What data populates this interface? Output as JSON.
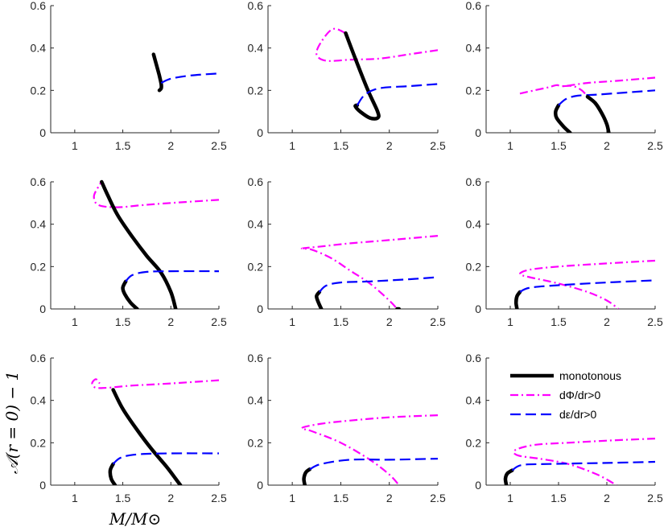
{
  "figure": {
    "ylabel": "𝒜(r = 0) − 1",
    "xlabel": "M/M⊙"
  },
  "chart_data": {
    "type": "line",
    "layout": "3x3 grid of panels",
    "xlim": [
      0.75,
      2.5
    ],
    "ylim": [
      0,
      0.6
    ],
    "xticks": [
      1,
      1.5,
      2,
      2.5
    ],
    "yticks": [
      0,
      0.2,
      0.4,
      0.6
    ],
    "xtick_labels": [
      "1",
      "1.5",
      "2",
      "2.5"
    ],
    "ytick_labels": [
      "0",
      "0.2",
      "0.4",
      "0.6"
    ],
    "legend": {
      "placement": "bottom-right panel, top-right",
      "entries": [
        {
          "key": "mono",
          "label": "monotonous"
        },
        {
          "key": "phi",
          "label": "dΦ/dr>0"
        },
        {
          "key": "eps",
          "label": "dε/dr>0"
        }
      ]
    },
    "styles": {
      "mono": {
        "color": "#000000",
        "dash": "solid"
      },
      "phi": {
        "color": "#ff00ff",
        "dash": "dashdot"
      },
      "eps": {
        "color": "#0000ff",
        "dash": "dashed"
      }
    },
    "panels": [
      {
        "series": [
          {
            "style": "mono",
            "x": [
              1.82,
              1.85,
              1.88,
              1.9,
              1.9,
              1.88
            ],
            "y": [
              0.37,
              0.32,
              0.27,
              0.23,
              0.21,
              0.2
            ]
          },
          {
            "style": "eps",
            "x": [
              1.9,
              2.0,
              2.2,
              2.5
            ],
            "y": [
              0.235,
              0.255,
              0.27,
              0.28
            ]
          }
        ]
      },
      {
        "series": [
          {
            "style": "phi",
            "x": [
              2.5,
              2.2,
              1.9,
              1.6,
              1.35,
              1.25,
              1.3,
              1.42,
              1.55
            ],
            "y": [
              0.39,
              0.37,
              0.35,
              0.345,
              0.34,
              0.37,
              0.43,
              0.49,
              0.47
            ]
          },
          {
            "style": "mono",
            "x": [
              1.55,
              1.65,
              1.78,
              1.88,
              1.88,
              1.8,
              1.7,
              1.65,
              1.67
            ],
            "y": [
              0.47,
              0.35,
              0.2,
              0.1,
              0.07,
              0.07,
              0.1,
              0.125,
              0.13
            ]
          },
          {
            "style": "eps",
            "x": [
              1.67,
              1.75,
              1.9,
              2.2,
              2.5
            ],
            "y": [
              0.13,
              0.18,
              0.21,
              0.22,
              0.23
            ]
          }
        ]
      },
      {
        "series": [
          {
            "style": "phi",
            "x": [
              1.1,
              1.25,
              1.4,
              1.48,
              1.55,
              1.8,
              2.1,
              2.5
            ],
            "y": [
              0.185,
              0.2,
              0.215,
              0.225,
              0.22,
              0.235,
              0.245,
              0.26
            ]
          },
          {
            "style": "mono",
            "x": [
              1.62,
              1.55,
              1.48,
              1.47,
              1.5
            ],
            "y": [
              0.0,
              0.03,
              0.07,
              0.1,
              0.13
            ]
          },
          {
            "style": "eps",
            "x": [
              1.5,
              1.58,
              1.7,
              1.9,
              2.2,
              2.5
            ],
            "y": [
              0.13,
              0.16,
              0.175,
              0.18,
              0.19,
              0.2
            ]
          },
          {
            "style": "phi",
            "x": [
              1.55,
              1.65,
              1.74,
              1.8
            ],
            "y": [
              0.22,
              0.22,
              0.2,
              0.17
            ]
          },
          {
            "style": "mono",
            "x": [
              1.8,
              1.88,
              1.95,
              2.0,
              2.02
            ],
            "y": [
              0.17,
              0.14,
              0.09,
              0.04,
              0.0
            ]
          }
        ]
      },
      {
        "series": [
          {
            "style": "phi",
            "x": [
              2.5,
              2.0,
              1.7,
              1.45,
              1.25,
              1.2,
              1.25,
              1.28
            ],
            "y": [
              0.515,
              0.5,
              0.49,
              0.48,
              0.49,
              0.53,
              0.58,
              0.6
            ]
          },
          {
            "style": "mono",
            "x": [
              1.28,
              1.35,
              1.45,
              1.6,
              1.75,
              1.9,
              2.0,
              2.05
            ],
            "y": [
              0.6,
              0.53,
              0.44,
              0.34,
              0.25,
              0.17,
              0.08,
              0.0
            ]
          },
          {
            "style": "mono",
            "x": [
              1.65,
              1.58,
              1.52,
              1.5,
              1.53
            ],
            "y": [
              0.0,
              0.03,
              0.07,
              0.1,
              0.13
            ]
          },
          {
            "style": "eps",
            "x": [
              1.53,
              1.6,
              1.75,
              2.0,
              2.5
            ],
            "y": [
              0.13,
              0.16,
              0.175,
              0.178,
              0.178
            ]
          }
        ]
      },
      {
        "series": [
          {
            "style": "phi",
            "x": [
              2.5,
              2.0,
              1.6,
              1.3,
              1.1,
              1.2,
              1.4,
              1.6,
              1.8,
              2.0,
              2.08
            ],
            "y": [
              0.345,
              0.325,
              0.31,
              0.295,
              0.285,
              0.28,
              0.24,
              0.18,
              0.12,
              0.04,
              0.0
            ]
          },
          {
            "style": "mono",
            "x": [
              2.08,
              2.1
            ],
            "y": [
              0.0,
              0.0
            ]
          },
          {
            "style": "mono",
            "x": [
              1.3,
              1.27,
              1.25,
              1.28
            ],
            "y": [
              0.0,
              0.03,
              0.06,
              0.08
            ]
          },
          {
            "style": "eps",
            "x": [
              1.28,
              1.35,
              1.5,
              1.8,
              2.2,
              2.5
            ],
            "y": [
              0.08,
              0.11,
              0.125,
              0.13,
              0.14,
              0.15
            ]
          }
        ]
      },
      {
        "series": [
          {
            "style": "phi",
            "x": [
              2.5,
              2.0,
              1.5,
              1.2,
              1.1,
              1.2,
              1.5,
              1.8,
              2.0,
              2.12
            ],
            "y": [
              0.228,
              0.215,
              0.2,
              0.185,
              0.165,
              0.15,
              0.12,
              0.08,
              0.04,
              0.0
            ]
          },
          {
            "style": "mono",
            "x": [
              1.07,
              1.06,
              1.07,
              1.1
            ],
            "y": [
              0.0,
              0.03,
              0.06,
              0.08
            ]
          },
          {
            "style": "eps",
            "x": [
              1.1,
              1.2,
              1.5,
              2.0,
              2.5
            ],
            "y": [
              0.08,
              0.1,
              0.112,
              0.125,
              0.135
            ]
          }
        ]
      },
      {
        "series": [
          {
            "style": "phi",
            "x": [
              2.5,
              2.0,
              1.6,
              1.35,
              1.22,
              1.18,
              1.22,
              1.26
            ],
            "y": [
              0.495,
              0.48,
              0.47,
              0.46,
              0.46,
              0.48,
              0.5,
              0.48
            ]
          },
          {
            "style": "mono",
            "x": [
              1.4,
              1.5,
              1.65,
              1.8,
              1.95,
              2.05,
              2.1
            ],
            "y": [
              0.45,
              0.36,
              0.26,
              0.17,
              0.09,
              0.03,
              0.0
            ]
          },
          {
            "style": "mono",
            "x": [
              1.42,
              1.38,
              1.37,
              1.4
            ],
            "y": [
              0.0,
              0.03,
              0.07,
              0.1
            ]
          },
          {
            "style": "eps",
            "x": [
              1.4,
              1.48,
              1.65,
              2.0,
              2.5
            ],
            "y": [
              0.1,
              0.13,
              0.145,
              0.15,
              0.15
            ]
          }
        ]
      },
      {
        "series": [
          {
            "style": "phi",
            "x": [
              2.5,
              2.0,
              1.6,
              1.3,
              1.1,
              1.2,
              1.5,
              1.8,
              2.0,
              2.1
            ],
            "y": [
              0.33,
              0.32,
              0.305,
              0.29,
              0.27,
              0.255,
              0.2,
              0.12,
              0.05,
              0.0
            ]
          },
          {
            "style": "mono",
            "x": [
              1.13,
              1.12,
              1.14,
              1.18
            ],
            "y": [
              0.0,
              0.03,
              0.06,
              0.075
            ]
          },
          {
            "style": "eps",
            "x": [
              1.18,
              1.3,
              1.6,
              2.0,
              2.5
            ],
            "y": [
              0.075,
              0.1,
              0.12,
              0.12,
              0.125
            ]
          }
        ]
      },
      {
        "series": [
          {
            "style": "phi",
            "x": [
              2.5,
              2.0,
              1.6,
              1.25,
              1.05,
              1.08,
              1.3,
              1.6,
              1.9,
              2.1
            ],
            "y": [
              0.22,
              0.21,
              0.2,
              0.19,
              0.165,
              0.14,
              0.125,
              0.1,
              0.05,
              0.0
            ]
          },
          {
            "style": "mono",
            "x": [
              0.96,
              0.95,
              0.97,
              1.02
            ],
            "y": [
              0.0,
              0.03,
              0.055,
              0.07
            ]
          },
          {
            "style": "eps",
            "x": [
              1.02,
              1.12,
              1.4,
              2.0,
              2.5
            ],
            "y": [
              0.07,
              0.095,
              0.1,
              0.105,
              0.11
            ]
          }
        ]
      }
    ]
  }
}
